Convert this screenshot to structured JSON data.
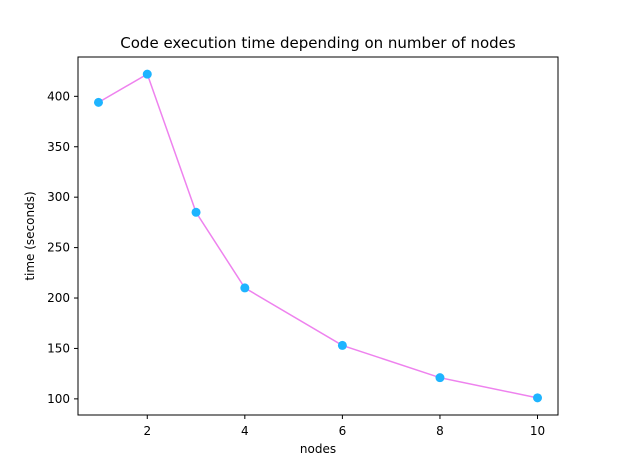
{
  "chart_data": {
    "type": "line",
    "title": "Code execution time depending on number of nodes",
    "xlabel": "nodes",
    "ylabel": "time (seconds)",
    "x": [
      1,
      2,
      3,
      4,
      6,
      8,
      10
    ],
    "series": [
      {
        "values": [
          394,
          422,
          285,
          210,
          153,
          121,
          101
        ]
      }
    ],
    "xlim": [
      0.58,
      10.42
    ],
    "ylim": [
      84,
      439
    ],
    "xticks": [
      2,
      4,
      6,
      8,
      10
    ],
    "xtick_labels": [
      "2",
      "4",
      "6",
      "8",
      "10"
    ],
    "yticks": [
      100,
      150,
      200,
      250,
      300,
      350,
      400
    ],
    "ytick_labels": [
      "100",
      "150",
      "200",
      "250",
      "300",
      "350",
      "400"
    ],
    "grid": false,
    "colors": {
      "line": "#ee82ee",
      "marker": "#1eb4ff",
      "axes": "#000000"
    }
  }
}
